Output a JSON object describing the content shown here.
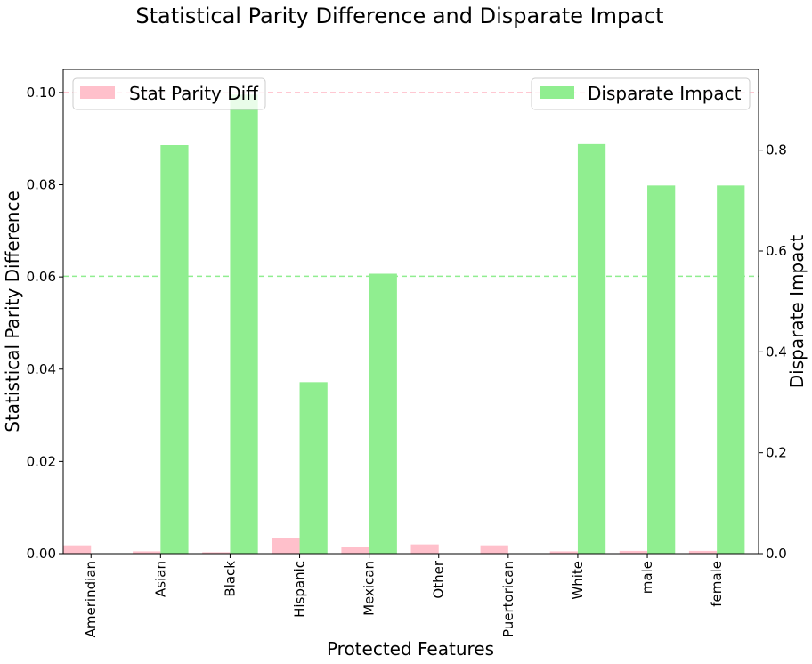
{
  "chart_data": {
    "type": "bar",
    "title": "Statistical Parity Difference and Disparate Impact",
    "xlabel": "Protected Features",
    "ylabel_left": "Statistical Parity Difference",
    "ylabel_right": "Disparate Impact",
    "categories": [
      "Amerindian",
      "Asian",
      "Black",
      "Hispanic",
      "Mexican",
      "Other",
      "Puertorican",
      "White",
      "male",
      "female"
    ],
    "ylim_left": [
      0,
      0.105
    ],
    "ylim_right": [
      0,
      0.96
    ],
    "yticks_left": [
      "0.00",
      "0.02",
      "0.04",
      "0.06",
      "0.08",
      "0.10"
    ],
    "yticks_right": [
      "0.0",
      "0.2",
      "0.4",
      "0.6",
      "0.8"
    ],
    "reference_lines": [
      {
        "axis": "left",
        "value": 0.1,
        "color": "#ffc0cb"
      },
      {
        "axis": "right",
        "value": 0.55,
        "color": "#90ee90"
      }
    ],
    "series": [
      {
        "name": "Stat Parity Diff",
        "axis": "left",
        "color": "#ffc0cb",
        "values": [
          0.0018,
          0.0005,
          0.0003,
          0.0033,
          0.0014,
          0.002,
          0.0018,
          0.0005,
          0.0006,
          0.0006
        ],
        "legend_position": "top-left"
      },
      {
        "name": "Disparate Impact",
        "axis": "right",
        "color": "#90ee90",
        "values": [
          0,
          0.81,
          0.91,
          0.34,
          0.555,
          0,
          0,
          0.812,
          0.73,
          0.73
        ],
        "legend_position": "top-right"
      }
    ]
  }
}
